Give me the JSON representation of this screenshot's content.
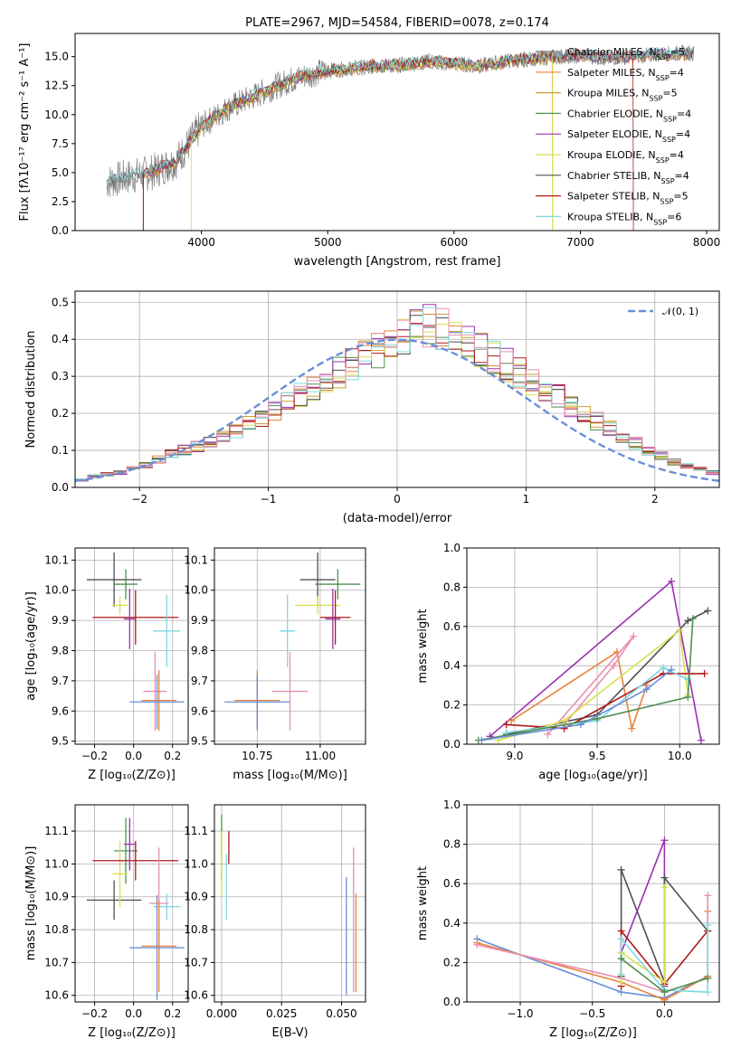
{
  "colors": [
    "#808080",
    "#e8823c",
    "#c8a030",
    "#4f8f4f",
    "#9b30b0",
    "#d8e050",
    "#505050",
    "#b01818",
    "#7fd8e0",
    "#e88fb0",
    "#6a8fd8"
  ],
  "chart_data": [
    {
      "type": "line",
      "title": "PLATE=2967, MJD=54584, FIBERID=0078, z=0.174",
      "xlabel": "wavelength [Angstrom, rest frame]",
      "ylabel": "Flux [fλ10⁻¹⁷ erg cm⁻² s⁻¹ A⁻¹]",
      "xlim": [
        3000,
        8100
      ],
      "ylim": [
        0,
        17
      ],
      "xticks": [
        "4000",
        "5000",
        "6000",
        "7000",
        "8000"
      ],
      "yticks": [
        "0.0",
        "2.5",
        "5.0",
        "7.5",
        "10.0",
        "12.5",
        "15.0"
      ],
      "legend_position": "right",
      "legend": [
        "Chabrier MILES, N_SSP=5",
        "Salpeter MILES, N_SSP=4",
        "Kroupa MILES, N_SSP=5",
        "Chabrier ELODIE, N_SSP=4",
        "Salpeter ELODIE, N_SSP=4",
        "Kroupa ELODIE, N_SSP=4",
        "Chabrier STELIB, N_SSP=4",
        "Salpeter STELIB, N_SSP=5",
        "Kroupa STELIB, N_SSP=6"
      ],
      "data_x": [
        3250,
        3400,
        3600,
        3800,
        4000,
        4200,
        4400,
        4600,
        4800,
        5000,
        5200,
        5400,
        5600,
        5800,
        6000,
        6200,
        6400,
        6600,
        6800,
        7000,
        7200,
        7400,
        7600,
        7800
      ],
      "data_y": [
        4.2,
        4.6,
        5.0,
        6.0,
        9.0,
        10.5,
        11.5,
        12.5,
        13.3,
        13.8,
        14.0,
        14.2,
        14.3,
        14.6,
        14.4,
        14.2,
        14.6,
        14.8,
        15.0,
        15.1,
        14.9,
        15.0,
        15.2,
        15.3
      ]
    },
    {
      "type": "bar",
      "xlabel": "(data-model)/error",
      "ylabel": "Normed distribution",
      "xlim": [
        -2.5,
        2.5
      ],
      "ylim": [
        0,
        0.53
      ],
      "xticks": [
        "−2",
        "−1",
        "0",
        "1",
        "2"
      ],
      "yticks": [
        "0.0",
        "0.1",
        "0.2",
        "0.3",
        "0.4",
        "0.5"
      ],
      "legend": [
        "𝒩(0, 1)"
      ],
      "legend_position": "top-right",
      "bin_edges_start": -2.5,
      "bin_width": 0.1,
      "values": [
        0.02,
        0.03,
        0.035,
        0.04,
        0.05,
        0.06,
        0.075,
        0.09,
        0.1,
        0.11,
        0.12,
        0.135,
        0.15,
        0.17,
        0.19,
        0.21,
        0.23,
        0.25,
        0.27,
        0.29,
        0.31,
        0.33,
        0.35,
        0.37,
        0.39,
        0.41,
        0.43,
        0.44,
        0.43,
        0.41,
        0.39,
        0.37,
        0.35,
        0.33,
        0.31,
        0.29,
        0.27,
        0.25,
        0.22,
        0.2,
        0.18,
        0.16,
        0.14,
        0.12,
        0.1,
        0.085,
        0.07,
        0.06,
        0.05,
        0.04
      ]
    },
    {
      "type": "scatter",
      "xlabel": "Z [log₁₀(Z/Z⊙)]",
      "ylabel": "age  [log₁₀(age/yr)]",
      "xlim": [
        -0.3,
        0.28
      ],
      "ylim": [
        9.49,
        10.14
      ],
      "xticks": [
        "−0.2",
        "0.0",
        "0.2"
      ],
      "yticks": [
        "9.5",
        "9.6",
        "9.7",
        "9.8",
        "9.9",
        "10.0",
        "10.1"
      ],
      "points": [
        {
          "x": -0.1,
          "y": 10.035,
          "ex": 0.14,
          "ey": 0.09,
          "c": 6
        },
        {
          "x": -0.04,
          "y": 10.02,
          "ex": 0.06,
          "ey": 0.05,
          "c": 3
        },
        {
          "x": -0.07,
          "y": 9.95,
          "ex": 0.04,
          "ey": 0.03,
          "c": 5
        },
        {
          "x": 0.01,
          "y": 9.91,
          "ex": 0.22,
          "ey": 0.09,
          "c": 7
        },
        {
          "x": -0.02,
          "y": 9.905,
          "ex": 0.03,
          "ey": 0.1,
          "c": 4
        },
        {
          "x": 0.17,
          "y": 9.865,
          "ex": 0.07,
          "ey": 0.12,
          "c": 8
        },
        {
          "x": 0.11,
          "y": 9.665,
          "ex": 0.06,
          "ey": 0.13,
          "c": 9
        },
        {
          "x": 0.13,
          "y": 9.635,
          "ex": 0.09,
          "ey": 0.1,
          "c": 1
        },
        {
          "x": 0.12,
          "y": 9.63,
          "ex": 0.14,
          "ey": 0.09,
          "c": 10
        }
      ]
    },
    {
      "type": "scatter",
      "xlabel": "mass [log₁₀(M/M⊙)]",
      "ylabel": "",
      "xlim": [
        10.58,
        11.18
      ],
      "ylim": [
        9.49,
        10.14
      ],
      "xticks": [
        "10.75",
        "11.00"
      ],
      "yticks": [
        "9.5",
        "9.6",
        "9.7",
        "9.8",
        "9.9",
        "10.0",
        "10.1"
      ],
      "points": [
        {
          "x": 10.99,
          "y": 10.035,
          "ex": 0.07,
          "ey": 0.09,
          "c": 6
        },
        {
          "x": 11.07,
          "y": 10.02,
          "ex": 0.09,
          "ey": 0.05,
          "c": 3
        },
        {
          "x": 10.99,
          "y": 9.95,
          "ex": 0.09,
          "ey": 0.03,
          "c": 5
        },
        {
          "x": 11.06,
          "y": 9.91,
          "ex": 0.06,
          "ey": 0.09,
          "c": 7
        },
        {
          "x": 11.05,
          "y": 9.905,
          "ex": 0.03,
          "ey": 0.1,
          "c": 4
        },
        {
          "x": 10.87,
          "y": 9.865,
          "ex": 0.03,
          "ey": 0.12,
          "c": 8
        },
        {
          "x": 10.88,
          "y": 9.665,
          "ex": 0.07,
          "ey": 0.13,
          "c": 9
        },
        {
          "x": 10.75,
          "y": 9.635,
          "ex": 0.09,
          "ey": 0.1,
          "c": 1
        },
        {
          "x": 10.75,
          "y": 9.63,
          "ex": 0.13,
          "ey": 0.09,
          "c": 10
        }
      ]
    },
    {
      "type": "line",
      "xlabel": "age  [log₁₀(age/yr)]",
      "ylabel": "mass weight",
      "xlim": [
        8.71,
        10.24
      ],
      "ylim": [
        0,
        1.0
      ],
      "xticks": [
        "9.0",
        "9.5",
        "10.0"
      ],
      "yticks": [
        "0.0",
        "0.2",
        "0.4",
        "0.6",
        "0.8",
        "1.0"
      ],
      "series": [
        {
          "c": 4,
          "x": [
            8.85,
            9.95,
            10.13
          ],
          "y": [
            0.04,
            0.83,
            0.02
          ]
        },
        {
          "c": 6,
          "x": [
            8.95,
            9.5,
            10.05,
            10.17
          ],
          "y": [
            0.05,
            0.15,
            0.63,
            0.68
          ]
        },
        {
          "c": 1,
          "x": [
            8.98,
            9.62,
            9.71,
            9.8
          ],
          "y": [
            0.12,
            0.47,
            0.08,
            0.3
          ]
        },
        {
          "c": 9,
          "x": [
            9.2,
            9.72,
            9.6,
            9.3
          ],
          "y": [
            0.05,
            0.55,
            0.4,
            0.1
          ]
        },
        {
          "c": 5,
          "x": [
            8.9,
            9.3,
            10.0,
            10.05
          ],
          "y": [
            0.02,
            0.12,
            0.58,
            0.25
          ]
        },
        {
          "c": 7,
          "x": [
            8.95,
            9.3,
            9.9,
            10.15
          ],
          "y": [
            0.1,
            0.08,
            0.36,
            0.36
          ]
        },
        {
          "c": 8,
          "x": [
            8.95,
            9.5,
            9.9,
            10.05
          ],
          "y": [
            0.06,
            0.12,
            0.39,
            0.33
          ]
        },
        {
          "c": 3,
          "x": [
            8.78,
            9.5,
            10.05,
            10.08
          ],
          "y": [
            0.02,
            0.13,
            0.24,
            0.64
          ]
        },
        {
          "c": 10,
          "x": [
            8.8,
            9.4,
            9.8,
            9.95
          ],
          "y": [
            0.02,
            0.1,
            0.28,
            0.38
          ]
        }
      ]
    },
    {
      "type": "scatter",
      "xlabel": "Z [log₁₀(Z/Z⊙)]",
      "ylabel": "mass [log₁₀(M/M⊙)]",
      "xlim": [
        -0.3,
        0.28
      ],
      "ylim": [
        10.58,
        11.18
      ],
      "xticks": [
        "−0.2",
        "0.0",
        "0.2"
      ],
      "yticks": [
        "10.6",
        "10.7",
        "10.8",
        "10.9",
        "11.0",
        "11.1"
      ],
      "points": [
        {
          "x": -0.1,
          "y": 10.89,
          "ex": 0.14,
          "ey": 0.06,
          "c": 6
        },
        {
          "x": -0.04,
          "y": 11.04,
          "ex": 0.06,
          "ey": 0.1,
          "c": 3
        },
        {
          "x": -0.07,
          "y": 10.97,
          "ex": 0.04,
          "ey": 0.1,
          "c": 5
        },
        {
          "x": 0.01,
          "y": 11.01,
          "ex": 0.22,
          "ey": 0.06,
          "c": 7
        },
        {
          "x": -0.02,
          "y": 11.06,
          "ex": 0.03,
          "ey": 0.08,
          "c": 4
        },
        {
          "x": 0.17,
          "y": 10.87,
          "ex": 0.07,
          "ey": 0.04,
          "c": 8
        },
        {
          "x": 0.13,
          "y": 10.88,
          "ex": 0.05,
          "ey": 0.17,
          "c": 9
        },
        {
          "x": 0.13,
          "y": 10.75,
          "ex": 0.09,
          "ey": 0.14,
          "c": 1
        },
        {
          "x": 0.12,
          "y": 10.745,
          "ex": 0.14,
          "ey": 0.16,
          "c": 10
        }
      ]
    },
    {
      "type": "scatter",
      "xlabel": "E(B-V)",
      "ylabel": "",
      "xlim": [
        -0.003,
        0.06
      ],
      "ylim": [
        10.58,
        11.18
      ],
      "xticks": [
        "0.000",
        "0.025",
        "0.050"
      ],
      "yticks": [
        "10.6",
        "10.7",
        "10.8",
        "10.9",
        "11.0",
        "11.1"
      ],
      "points": [
        {
          "x": 0.0,
          "y": 11.05,
          "ex": 0,
          "ey": 0.1,
          "c": 3
        },
        {
          "x": 0.0,
          "y": 11.0,
          "ex": 0,
          "ey": 0.1,
          "c": 5
        },
        {
          "x": 0.003,
          "y": 11.05,
          "ex": 0,
          "ey": 0.05,
          "c": 7
        },
        {
          "x": 0.002,
          "y": 10.93,
          "ex": 0,
          "ey": 0.1,
          "c": 8
        },
        {
          "x": 0.052,
          "y": 10.78,
          "ex": 0,
          "ey": 0.18,
          "c": 10
        },
        {
          "x": 0.055,
          "y": 10.83,
          "ex": 0,
          "ey": 0.22,
          "c": 9
        },
        {
          "x": 0.056,
          "y": 10.76,
          "ex": 0,
          "ey": 0.15,
          "c": 1
        }
      ]
    },
    {
      "type": "line",
      "xlabel": "Z [log₁₀(Z/Z⊙)]",
      "ylabel": "mass weight",
      "xlim": [
        -1.37,
        0.38
      ],
      "ylim": [
        0,
        1.0
      ],
      "xticks": [
        "−1.0",
        "−0.5",
        "0.0"
      ],
      "yticks": [
        "0.0",
        "0.2",
        "0.4",
        "0.6",
        "0.8",
        "1.0"
      ],
      "series": [
        {
          "c": 10,
          "x": [
            -1.3,
            -0.3,
            0.0,
            0.3
          ],
          "y": [
            0.32,
            0.05,
            0.02,
            0.13
          ]
        },
        {
          "c": 1,
          "x": [
            -1.3,
            -0.3,
            0.0,
            0.3,
            0.3
          ],
          "y": [
            0.3,
            0.1,
            0.01,
            0.13,
            0.46
          ]
        },
        {
          "c": 9,
          "x": [
            -1.3,
            -0.3,
            0.0,
            0.3,
            0.3
          ],
          "y": [
            0.29,
            0.12,
            0.05,
            0.12,
            0.54
          ]
        },
        {
          "c": 4,
          "x": [
            -0.3,
            0.0,
            0.0
          ],
          "y": [
            0.25,
            0.82,
            0.08
          ]
        },
        {
          "c": 6,
          "x": [
            -0.3,
            -0.3,
            0.0,
            0.0,
            0.3
          ],
          "y": [
            0.13,
            0.67,
            0.1,
            0.63,
            0.36
          ]
        },
        {
          "c": 7,
          "x": [
            -0.3,
            -0.3,
            0.0,
            0.3
          ],
          "y": [
            0.08,
            0.36,
            0.09,
            0.36
          ]
        },
        {
          "c": 5,
          "x": [
            -0.3,
            -0.3,
            0.0,
            0.0
          ],
          "y": [
            0.1,
            0.25,
            0.1,
            0.58
          ]
        },
        {
          "c": 8,
          "x": [
            -0.3,
            -0.3,
            0.0,
            0.3,
            0.3
          ],
          "y": [
            0.14,
            0.32,
            0.06,
            0.05,
            0.39
          ]
        },
        {
          "c": 3,
          "x": [
            -0.3,
            0.0,
            0.3
          ],
          "y": [
            0.22,
            0.05,
            0.12
          ]
        }
      ]
    }
  ]
}
